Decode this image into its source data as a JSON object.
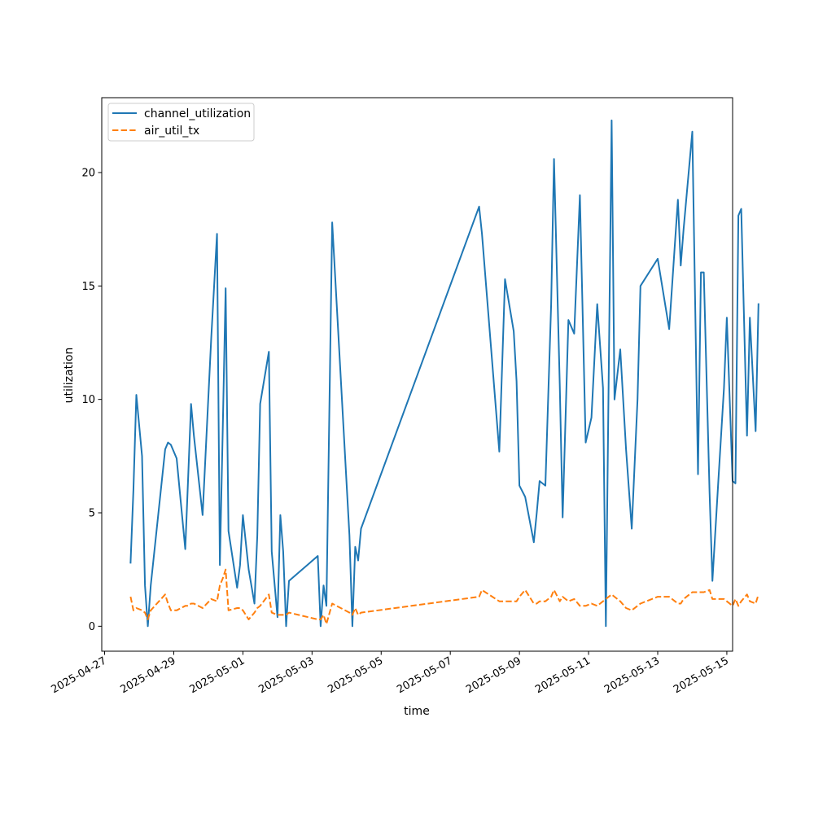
{
  "chart_data": {
    "type": "line",
    "title": "",
    "xlabel": "time",
    "ylabel": "utilization",
    "x_scale": "date",
    "xlim": [
      "2025-04-26 22:00",
      "2025-05-15 04:00"
    ],
    "ylim": [
      -1.1,
      23.3
    ],
    "grid": false,
    "legend_position": "upper left",
    "x_ticks": [
      "2025-04-27",
      "2025-04-29",
      "2025-05-01",
      "2025-05-03",
      "2025-05-05",
      "2025-05-07",
      "2025-05-09",
      "2025-05-11",
      "2025-05-13",
      "2025-05-15"
    ],
    "y_ticks": [
      0,
      5,
      10,
      15,
      20
    ],
    "series": [
      {
        "name": "channel_utilization",
        "color": "#1f77b4",
        "line_style": "solid",
        "points": [
          [
            "2025-04-27 18:00",
            2.8
          ],
          [
            "2025-04-27 20:00",
            6.0
          ],
          [
            "2025-04-27 22:00",
            10.2
          ],
          [
            "2025-04-28 02:00",
            7.5
          ],
          [
            "2025-04-28 04:00",
            1.8
          ],
          [
            "2025-04-28 06:00",
            0.0
          ],
          [
            "2025-04-28 08:00",
            1.8
          ],
          [
            "2025-04-28 18:00",
            7.8
          ],
          [
            "2025-04-28 20:00",
            8.1
          ],
          [
            "2025-04-28 22:00",
            8.0
          ],
          [
            "2025-04-29 02:00",
            7.4
          ],
          [
            "2025-04-29 08:00",
            3.4
          ],
          [
            "2025-04-29 10:00",
            6.6
          ],
          [
            "2025-04-29 12:00",
            9.8
          ],
          [
            "2025-04-29 14:00",
            8.4
          ],
          [
            "2025-04-29 20:00",
            4.9
          ],
          [
            "2025-04-30 02:00",
            12.7
          ],
          [
            "2025-04-30 06:00",
            17.3
          ],
          [
            "2025-04-30 08:00",
            2.7
          ],
          [
            "2025-04-30 10:00",
            8.6
          ],
          [
            "2025-04-30 12:00",
            14.9
          ],
          [
            "2025-04-30 14:00",
            4.2
          ],
          [
            "2025-04-30 20:00",
            1.7
          ],
          [
            "2025-04-30 22:00",
            2.7
          ],
          [
            "2025-05-01 00:00",
            4.9
          ],
          [
            "2025-05-01 04:00",
            2.5
          ],
          [
            "2025-05-01 08:00",
            1.0
          ],
          [
            "2025-05-01 10:00",
            4.0
          ],
          [
            "2025-05-01 12:00",
            9.8
          ],
          [
            "2025-05-01 18:00",
            12.1
          ],
          [
            "2025-05-01 20:00",
            3.3
          ],
          [
            "2025-05-02 00:00",
            0.4
          ],
          [
            "2025-05-02 02:00",
            4.9
          ],
          [
            "2025-05-02 04:00",
            3.3
          ],
          [
            "2025-05-02 06:00",
            0.0
          ],
          [
            "2025-05-02 08:00",
            2.0
          ],
          [
            "2025-05-03 04:00",
            3.1
          ],
          [
            "2025-05-03 06:00",
            0.0
          ],
          [
            "2025-05-03 08:00",
            1.8
          ],
          [
            "2025-05-03 10:00",
            0.9
          ],
          [
            "2025-05-03 14:00",
            17.8
          ],
          [
            "2025-05-04 02:00",
            4.0
          ],
          [
            "2025-05-04 04:00",
            0.0
          ],
          [
            "2025-05-04 06:00",
            3.5
          ],
          [
            "2025-05-04 08:00",
            2.9
          ],
          [
            "2025-05-04 10:00",
            4.3
          ],
          [
            "2025-05-07 20:00",
            18.5
          ],
          [
            "2025-05-07 22:00",
            17.3
          ],
          [
            "2025-05-08 10:00",
            7.7
          ],
          [
            "2025-05-08 14:00",
            15.3
          ],
          [
            "2025-05-08 20:00",
            13.0
          ],
          [
            "2025-05-08 22:00",
            10.8
          ],
          [
            "2025-05-09 00:00",
            6.2
          ],
          [
            "2025-05-09 04:00",
            5.7
          ],
          [
            "2025-05-09 10:00",
            3.7
          ],
          [
            "2025-05-09 12:00",
            5.0
          ],
          [
            "2025-05-09 14:00",
            6.4
          ],
          [
            "2025-05-09 18:00",
            6.2
          ],
          [
            "2025-05-09 22:00",
            14.2
          ],
          [
            "2025-05-10 00:00",
            20.6
          ],
          [
            "2025-05-10 04:00",
            10.6
          ],
          [
            "2025-05-10 06:00",
            4.8
          ],
          [
            "2025-05-10 10:00",
            13.5
          ],
          [
            "2025-05-10 14:00",
            12.9
          ],
          [
            "2025-05-10 18:00",
            19.0
          ],
          [
            "2025-05-10 22:00",
            8.1
          ],
          [
            "2025-05-11 02:00",
            9.2
          ],
          [
            "2025-05-11 06:00",
            14.2
          ],
          [
            "2025-05-11 10:00",
            10.5
          ],
          [
            "2025-05-11 12:00",
            0.0
          ],
          [
            "2025-05-11 16:00",
            22.3
          ],
          [
            "2025-05-11 18:00",
            10.0
          ],
          [
            "2025-05-11 22:00",
            12.2
          ],
          [
            "2025-05-12 02:00",
            7.8
          ],
          [
            "2025-05-12 06:00",
            4.3
          ],
          [
            "2025-05-12 10:00",
            10.0
          ],
          [
            "2025-05-12 12:00",
            15.0
          ],
          [
            "2025-05-13 00:00",
            16.2
          ],
          [
            "2025-05-13 08:00",
            13.1
          ],
          [
            "2025-05-13 12:00",
            16.9
          ],
          [
            "2025-05-13 14:00",
            18.8
          ],
          [
            "2025-05-13 16:00",
            15.9
          ],
          [
            "2025-05-13 18:00",
            17.5
          ],
          [
            "2025-05-14 00:00",
            21.8
          ],
          [
            "2025-05-14 04:00",
            6.7
          ],
          [
            "2025-05-14 06:00",
            15.6
          ],
          [
            "2025-05-14 08:00",
            15.6
          ],
          [
            "2025-05-14 12:00",
            5.9
          ],
          [
            "2025-05-14 14:00",
            2.0
          ],
          [
            "2025-05-14 18:00",
            6.3
          ],
          [
            "2025-05-14 22:00",
            10.5
          ],
          [
            "2025-05-15 00:00",
            13.6
          ],
          [
            "2025-05-15 04:00",
            6.4
          ],
          [
            "2025-05-15 06:00",
            6.3
          ],
          [
            "2025-05-15 08:00",
            18.1
          ],
          [
            "2025-05-15 10:00",
            18.4
          ],
          [
            "2025-05-15 14:00",
            8.4
          ],
          [
            "2025-05-15 16:00",
            13.6
          ],
          [
            "2025-05-15 20:00",
            8.6
          ],
          [
            "2025-05-15 22:00",
            14.2
          ]
        ]
      },
      {
        "name": "air_util_tx",
        "color": "#ff7f0e",
        "line_style": "dashed",
        "points": [
          [
            "2025-04-27 18:00",
            1.3
          ],
          [
            "2025-04-27 20:00",
            0.7
          ],
          [
            "2025-04-27 22:00",
            0.8
          ],
          [
            "2025-04-28 02:00",
            0.7
          ],
          [
            "2025-04-28 04:00",
            0.6
          ],
          [
            "2025-04-28 06:00",
            0.3
          ],
          [
            "2025-04-28 08:00",
            0.7
          ],
          [
            "2025-04-28 18:00",
            1.4
          ],
          [
            "2025-04-28 20:00",
            1.0
          ],
          [
            "2025-04-28 22:00",
            0.7
          ],
          [
            "2025-04-29 02:00",
            0.7
          ],
          [
            "2025-04-29 08:00",
            0.9
          ],
          [
            "2025-04-29 10:00",
            0.9
          ],
          [
            "2025-04-29 12:00",
            1.0
          ],
          [
            "2025-04-29 14:00",
            1.0
          ],
          [
            "2025-04-29 20:00",
            0.8
          ],
          [
            "2025-04-30 02:00",
            1.2
          ],
          [
            "2025-04-30 06:00",
            1.1
          ],
          [
            "2025-04-30 08:00",
            1.8
          ],
          [
            "2025-04-30 10:00",
            2.1
          ],
          [
            "2025-04-30 12:00",
            2.5
          ],
          [
            "2025-04-30 14:00",
            0.7
          ],
          [
            "2025-04-30 20:00",
            0.8
          ],
          [
            "2025-04-30 22:00",
            0.8
          ],
          [
            "2025-05-01 00:00",
            0.7
          ],
          [
            "2025-05-01 04:00",
            0.3
          ],
          [
            "2025-05-01 08:00",
            0.6
          ],
          [
            "2025-05-01 10:00",
            0.8
          ],
          [
            "2025-05-01 12:00",
            0.9
          ],
          [
            "2025-05-01 18:00",
            1.4
          ],
          [
            "2025-05-01 20:00",
            0.6
          ],
          [
            "2025-05-02 00:00",
            0.5
          ],
          [
            "2025-05-02 02:00",
            0.5
          ],
          [
            "2025-05-02 04:00",
            0.5
          ],
          [
            "2025-05-02 06:00",
            0.5
          ],
          [
            "2025-05-02 08:00",
            0.6
          ],
          [
            "2025-05-03 04:00",
            0.3
          ],
          [
            "2025-05-03 06:00",
            0.3
          ],
          [
            "2025-05-03 08:00",
            0.5
          ],
          [
            "2025-05-03 10:00",
            0.1
          ],
          [
            "2025-05-03 14:00",
            1.0
          ],
          [
            "2025-05-04 02:00",
            0.6
          ],
          [
            "2025-05-04 04:00",
            0.5
          ],
          [
            "2025-05-04 06:00",
            0.8
          ],
          [
            "2025-05-04 08:00",
            0.5
          ],
          [
            "2025-05-04 10:00",
            0.6
          ],
          [
            "2025-05-07 20:00",
            1.3
          ],
          [
            "2025-05-07 22:00",
            1.6
          ],
          [
            "2025-05-08 10:00",
            1.1
          ],
          [
            "2025-05-08 14:00",
            1.1
          ],
          [
            "2025-05-08 20:00",
            1.1
          ],
          [
            "2025-05-08 22:00",
            1.1
          ],
          [
            "2025-05-09 00:00",
            1.3
          ],
          [
            "2025-05-09 04:00",
            1.6
          ],
          [
            "2025-05-09 10:00",
            1.0
          ],
          [
            "2025-05-09 12:00",
            1.0
          ],
          [
            "2025-05-09 14:00",
            1.1
          ],
          [
            "2025-05-09 18:00",
            1.1
          ],
          [
            "2025-05-09 22:00",
            1.3
          ],
          [
            "2025-05-10 00:00",
            1.6
          ],
          [
            "2025-05-10 04:00",
            1.1
          ],
          [
            "2025-05-10 06:00",
            1.3
          ],
          [
            "2025-05-10 10:00",
            1.1
          ],
          [
            "2025-05-10 14:00",
            1.2
          ],
          [
            "2025-05-10 18:00",
            0.9
          ],
          [
            "2025-05-10 22:00",
            0.9
          ],
          [
            "2025-05-11 02:00",
            1.0
          ],
          [
            "2025-05-11 06:00",
            0.9
          ],
          [
            "2025-05-11 10:00",
            1.1
          ],
          [
            "2025-05-11 12:00",
            1.2
          ],
          [
            "2025-05-11 16:00",
            1.4
          ],
          [
            "2025-05-11 18:00",
            1.3
          ],
          [
            "2025-05-11 22:00",
            1.1
          ],
          [
            "2025-05-12 02:00",
            0.8
          ],
          [
            "2025-05-12 06:00",
            0.7
          ],
          [
            "2025-05-12 10:00",
            0.9
          ],
          [
            "2025-05-12 12:00",
            1.0
          ],
          [
            "2025-05-13 00:00",
            1.3
          ],
          [
            "2025-05-13 08:00",
            1.3
          ],
          [
            "2025-05-13 12:00",
            1.1
          ],
          [
            "2025-05-13 14:00",
            1.0
          ],
          [
            "2025-05-13 16:00",
            1.0
          ],
          [
            "2025-05-13 18:00",
            1.2
          ],
          [
            "2025-05-14 00:00",
            1.5
          ],
          [
            "2025-05-14 04:00",
            1.5
          ],
          [
            "2025-05-14 06:00",
            1.5
          ],
          [
            "2025-05-14 08:00",
            1.5
          ],
          [
            "2025-05-14 12:00",
            1.6
          ],
          [
            "2025-05-14 14:00",
            1.2
          ],
          [
            "2025-05-14 18:00",
            1.2
          ],
          [
            "2025-05-14 22:00",
            1.2
          ],
          [
            "2025-05-15 00:00",
            1.1
          ],
          [
            "2025-05-15 04:00",
            0.9
          ],
          [
            "2025-05-15 06:00",
            1.2
          ],
          [
            "2025-05-15 08:00",
            0.9
          ],
          [
            "2025-05-15 10:00",
            1.1
          ],
          [
            "2025-05-15 14:00",
            1.4
          ],
          [
            "2025-05-15 16:00",
            1.1
          ],
          [
            "2025-05-15 20:00",
            1.0
          ],
          [
            "2025-05-15 22:00",
            1.4
          ]
        ]
      }
    ]
  }
}
